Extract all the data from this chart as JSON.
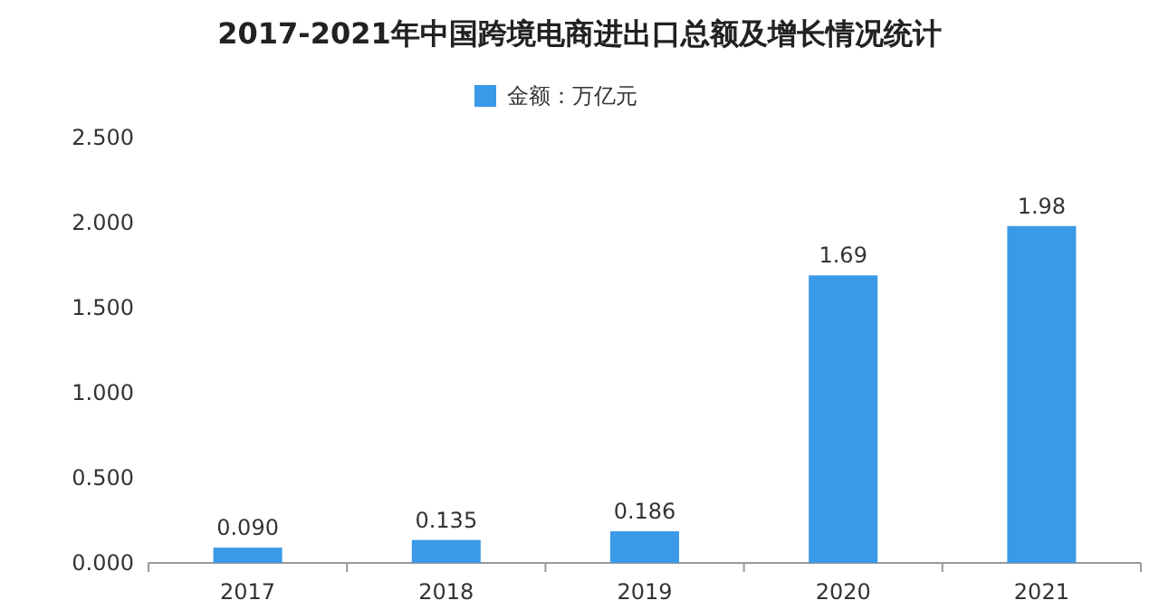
{
  "chart_data": {
    "type": "bar",
    "title": "2017-2021年中国跨境电商进出口总额及增长情况统计",
    "categories": [
      "2017",
      "2018",
      "2019",
      "2020",
      "2021"
    ],
    "series": [
      {
        "name": "金额：万亿元",
        "color": "#3a9ae8",
        "values": [
          0.09,
          0.135,
          0.186,
          1.69,
          1.98
        ],
        "value_labels": [
          "0.090",
          "0.135",
          "0.186",
          "1.69",
          "1.98"
        ]
      }
    ],
    "ylim": [
      0,
      2.5
    ],
    "yticks": [
      {
        "value": 0,
        "label": "0.000"
      },
      {
        "value": 0.5,
        "label": "0.500"
      },
      {
        "value": 1,
        "label": "1.000"
      },
      {
        "value": 1.5,
        "label": "1.500"
      },
      {
        "value": 2,
        "label": "2.000"
      },
      {
        "value": 2.5,
        "label": "2.500"
      }
    ],
    "legend": "top",
    "grid": false
  }
}
